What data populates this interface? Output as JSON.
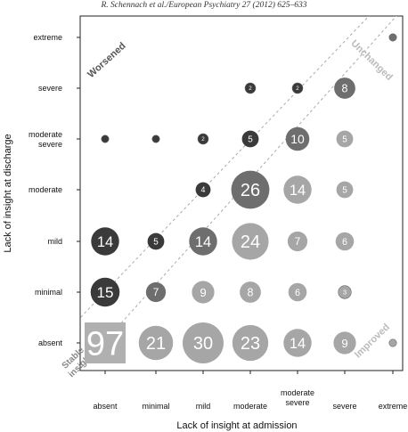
{
  "header": {
    "citation": "R. Schennach et al./European Psychiatry 27 (2012) 625–633"
  },
  "chart_data": {
    "type": "scatter",
    "subtype": "bubble",
    "xlabel": "Lack of insight at admission",
    "ylabel": "Lack of insight at discharge",
    "x_categories": [
      "absent",
      "minimal",
      "mild",
      "moderate",
      "moderate\nsevere",
      "severe",
      "extreme"
    ],
    "y_categories": [
      "absent",
      "minimal",
      "mild",
      "moderate",
      "moderate\nsevere",
      "severe",
      "extreme"
    ],
    "grid": false,
    "diagonal_band": "dashed lines bounding the 'Unchanged' diagonal",
    "region_labels": [
      {
        "text": "Worsened",
        "color": "#555555"
      },
      {
        "text": "Unchanged",
        "color": "#bbbbbb"
      },
      {
        "text": "Improved",
        "color": "#bbbbbb"
      },
      {
        "text": "Stable\ninsight",
        "color": "#888888"
      }
    ],
    "colors": {
      "worsened": "#3a3a3a",
      "unchanged": "#6e6e6e",
      "improved": "#a6a6a6",
      "stable": "#b0b0b0"
    },
    "points": [
      {
        "x": "absent",
        "y": "absent",
        "n": 97,
        "group": "stable",
        "shape": "square"
      },
      {
        "x": "minimal",
        "y": "absent",
        "n": 21,
        "group": "improved"
      },
      {
        "x": "mild",
        "y": "absent",
        "n": 30,
        "group": "improved"
      },
      {
        "x": "moderate",
        "y": "absent",
        "n": 23,
        "group": "improved"
      },
      {
        "x": "moderate\nsevere",
        "y": "absent",
        "n": 14,
        "group": "improved"
      },
      {
        "x": "severe",
        "y": "absent",
        "n": 9,
        "group": "improved"
      },
      {
        "x": "extreme",
        "y": "absent",
        "n": 1,
        "group": "improved",
        "show_label": false
      },
      {
        "x": "absent",
        "y": "minimal",
        "n": 15,
        "group": "worsened"
      },
      {
        "x": "minimal",
        "y": "minimal",
        "n": 7,
        "group": "unchanged"
      },
      {
        "x": "mild",
        "y": "minimal",
        "n": 9,
        "group": "improved"
      },
      {
        "x": "moderate",
        "y": "minimal",
        "n": 8,
        "group": "improved"
      },
      {
        "x": "moderate\nsevere",
        "y": "minimal",
        "n": 6,
        "group": "improved"
      },
      {
        "x": "severe",
        "y": "minimal",
        "n": 3,
        "group": "improved"
      },
      {
        "x": "absent",
        "y": "mild",
        "n": 14,
        "group": "worsened"
      },
      {
        "x": "minimal",
        "y": "mild",
        "n": 5,
        "group": "worsened"
      },
      {
        "x": "mild",
        "y": "mild",
        "n": 14,
        "group": "unchanged"
      },
      {
        "x": "moderate",
        "y": "mild",
        "n": 24,
        "group": "improved"
      },
      {
        "x": "moderate\nsevere",
        "y": "mild",
        "n": 7,
        "group": "improved"
      },
      {
        "x": "severe",
        "y": "mild",
        "n": 6,
        "group": "improved"
      },
      {
        "x": "mild",
        "y": "moderate",
        "n": 4,
        "group": "worsened"
      },
      {
        "x": "moderate",
        "y": "moderate",
        "n": 26,
        "group": "unchanged"
      },
      {
        "x": "moderate\nsevere",
        "y": "moderate",
        "n": 14,
        "group": "improved"
      },
      {
        "x": "severe",
        "y": "moderate",
        "n": 5,
        "group": "improved"
      },
      {
        "x": "absent",
        "y": "moderate\nsevere",
        "n": 1,
        "group": "worsened",
        "show_label": false
      },
      {
        "x": "minimal",
        "y": "moderate\nsevere",
        "n": 1,
        "group": "worsened",
        "show_label": false
      },
      {
        "x": "mild",
        "y": "moderate\nsevere",
        "n": 2,
        "group": "worsened"
      },
      {
        "x": "moderate",
        "y": "moderate\nsevere",
        "n": 5,
        "group": "worsened"
      },
      {
        "x": "moderate\nsevere",
        "y": "moderate\nsevere",
        "n": 10,
        "group": "unchanged"
      },
      {
        "x": "severe",
        "y": "moderate\nsevere",
        "n": 5,
        "group": "improved"
      },
      {
        "x": "moderate",
        "y": "severe",
        "n": 2,
        "group": "worsened"
      },
      {
        "x": "moderate\nsevere",
        "y": "severe",
        "n": 2,
        "group": "worsened"
      },
      {
        "x": "severe",
        "y": "severe",
        "n": 8,
        "group": "unchanged"
      },
      {
        "x": "extreme",
        "y": "extreme",
        "n": 1,
        "group": "unchanged",
        "show_label": false
      }
    ]
  }
}
